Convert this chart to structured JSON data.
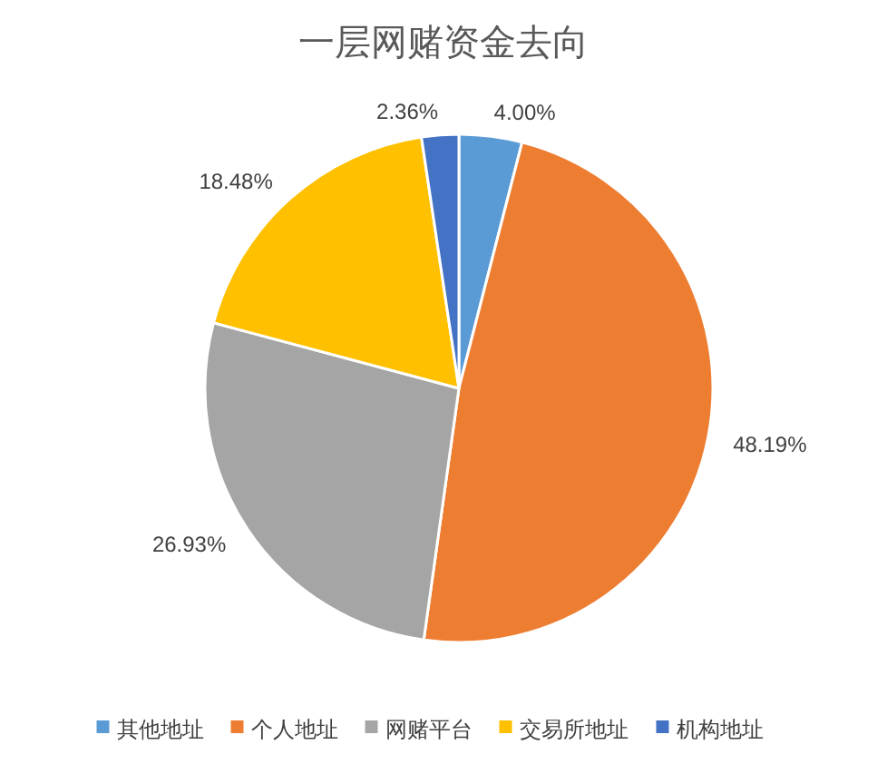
{
  "chart_data": {
    "type": "pie",
    "title": "一层网赌资金去向",
    "categories": [
      "其他地址",
      "个人地址",
      "网赌平台",
      "交易所地址",
      "机构地址"
    ],
    "values": [
      4.0,
      48.19,
      26.93,
      18.48,
      2.36
    ],
    "value_labels": [
      "4.00%",
      "48.19%",
      "26.93%",
      "18.48%",
      "2.36%"
    ],
    "colors": [
      "#5b9bd5",
      "#ed7d31",
      "#a5a5a5",
      "#ffc000",
      "#4472c4"
    ],
    "legend": "bottom"
  }
}
